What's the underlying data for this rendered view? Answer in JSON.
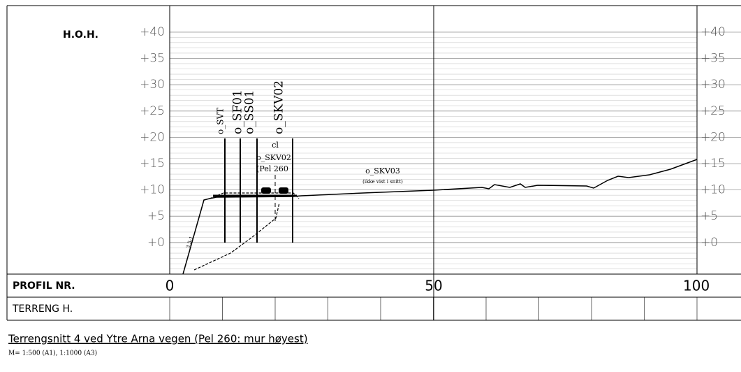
{
  "header": {
    "label": "H.O.H."
  },
  "elevation_labels": [
    "+40",
    "+35",
    "+30",
    "+25",
    "+20",
    "+15",
    "+10",
    "+5",
    "+0"
  ],
  "profile_row": {
    "label": "PROFIL NR.",
    "labels": [
      "0",
      "50",
      "100"
    ]
  },
  "terrain_row": {
    "label": "TERRENG H."
  },
  "markers": [
    "o_SVT",
    "o_SF01",
    "o_SS01",
    "o_SKV02"
  ],
  "annotations": {
    "cl": "cl",
    "centerline_name": "o_SKV02",
    "centerline_pel": "(Pel 260",
    "road_name": "o_SKV03",
    "road_note": "(ikke vist i snitt)",
    "slope": "3,5:1"
  },
  "caption": {
    "title": "Terrengsnitt 4 ved Ytre Arna vegen (Pel 260: mur høyest)",
    "scale": "M= 1:500 (A1), 1:1000 (A3)"
  }
}
